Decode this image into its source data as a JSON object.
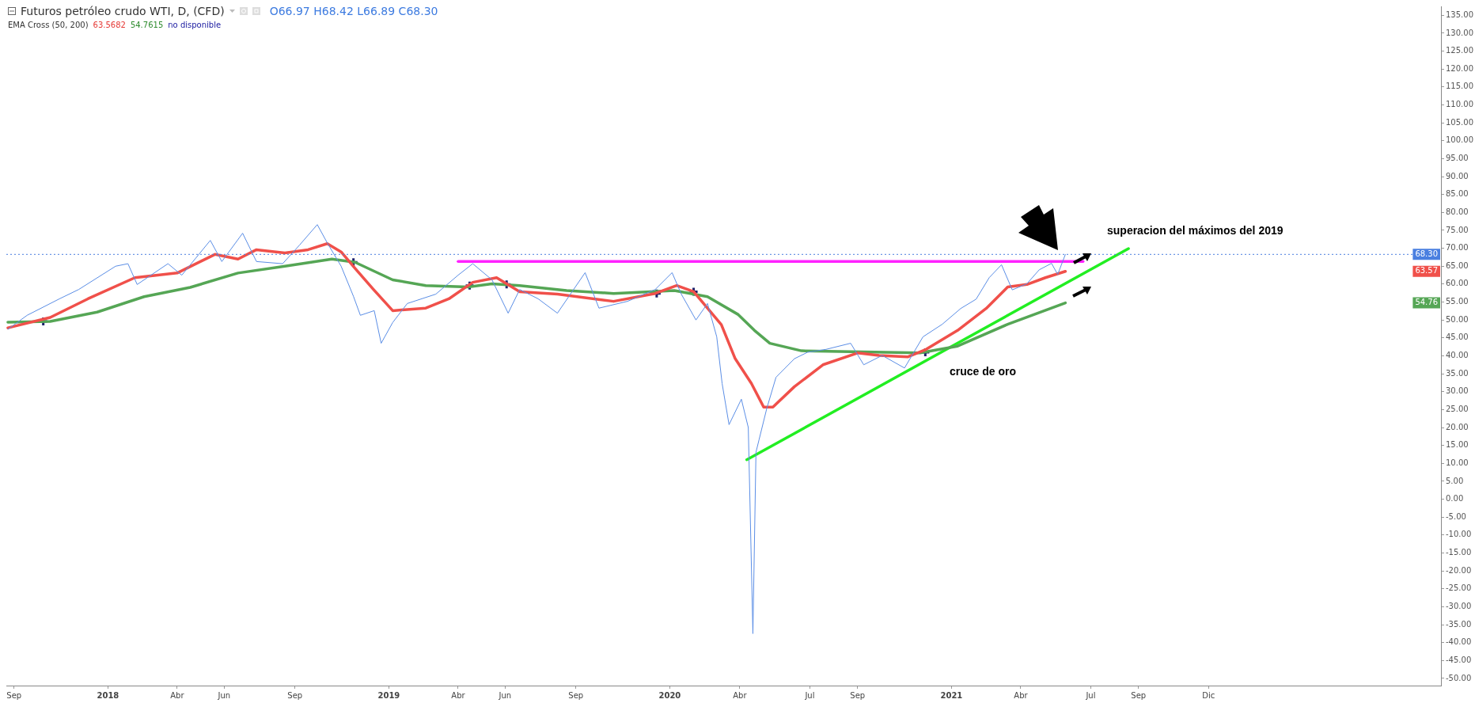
{
  "chart_data": {
    "type": "line",
    "title": "Futuros petróleo crudo WTI, D, (CFD)",
    "subtitle": "O66.97 H68.42 L66.89 C68.30",
    "annotations": [
      "EMA Cross (50, 200)",
      "63.5682",
      "54.7615",
      "no disponible",
      "superacion del máximos del 2019",
      "cruce de oro",
      "63.57",
      "54.76"
    ],
    "xlim": [
      "2017-08-22",
      "2022-09-29"
    ],
    "xticks": [
      {
        "value": "2017-09-01",
        "label": "Sep"
      },
      {
        "value": "2018-01-01",
        "label": "2018"
      },
      {
        "value": "2018-04-01",
        "label": "Abr"
      },
      {
        "value": "2018-06-01",
        "label": "Jun"
      },
      {
        "value": "2018-09-01",
        "label": "Sep"
      },
      {
        "value": "2019-01-01",
        "label": "2019"
      },
      {
        "value": "2019-04-01",
        "label": "Abr"
      },
      {
        "value": "2019-06-01",
        "label": "Jun"
      },
      {
        "value": "2019-09-01",
        "label": "Sep"
      },
      {
        "value": "2020-01-01",
        "label": "2020"
      },
      {
        "value": "2020-04-01",
        "label": "Abr"
      },
      {
        "value": "2020-07-01",
        "label": "Jul"
      },
      {
        "value": "2020-09-01",
        "label": "Sep"
      },
      {
        "value": "2021-01-01",
        "label": "2021"
      },
      {
        "value": "2021-04-01",
        "label": "Abr"
      },
      {
        "value": "2021-07-01",
        "label": "Jul"
      },
      {
        "value": "2021-09-01",
        "label": "Sep"
      },
      {
        "value": "2021-12-01",
        "label": "Dic"
      }
    ],
    "ylim": [
      -52,
      137.5
    ],
    "yticks": [
      {
        "value": -50,
        "label": "-50.00"
      },
      {
        "value": -45,
        "label": "-45.00"
      },
      {
        "value": -40,
        "label": "-40.00"
      },
      {
        "value": -35,
        "label": "-35.00"
      },
      {
        "value": -30,
        "label": "-30.00"
      },
      {
        "value": -25,
        "label": "-25.00"
      },
      {
        "value": -20,
        "label": "-20.00"
      },
      {
        "value": -15,
        "label": "-15.00"
      },
      {
        "value": -10,
        "label": "-10.00"
      },
      {
        "value": -5,
        "label": "-5.00"
      },
      {
        "value": 0,
        "label": "0.00"
      },
      {
        "value": 5,
        "label": "5.00"
      },
      {
        "value": 10,
        "label": "10.00"
      },
      {
        "value": 15,
        "label": "15.00"
      },
      {
        "value": 20,
        "label": "20.00"
      },
      {
        "value": 25,
        "label": "25.00"
      },
      {
        "value": 30,
        "label": "30.00"
      },
      {
        "value": 35,
        "label": "35.00"
      },
      {
        "value": 40,
        "label": "40.00"
      },
      {
        "value": 45,
        "label": "45.00"
      },
      {
        "value": 50,
        "label": "50.00"
      },
      {
        "value": 55,
        "label": "55.00"
      },
      {
        "value": 60,
        "label": "60.00"
      },
      {
        "value": 65,
        "label": "65.00"
      },
      {
        "value": 70,
        "label": "70.00"
      },
      {
        "value": 75,
        "label": "75.00"
      },
      {
        "value": 80,
        "label": "80.00"
      },
      {
        "value": 85,
        "label": "85.00"
      },
      {
        "value": 90,
        "label": "90.00"
      },
      {
        "value": 95,
        "label": "95.00"
      },
      {
        "value": 100,
        "label": "100.00"
      },
      {
        "value": 105,
        "label": "105.00"
      },
      {
        "value": 110,
        "label": "110.00"
      },
      {
        "value": 115,
        "label": "115.00"
      },
      {
        "value": 120,
        "label": "120.00"
      },
      {
        "value": 125,
        "label": "125.00"
      },
      {
        "value": 130,
        "label": "130.00"
      },
      {
        "value": 135,
        "label": "135.00"
      }
    ],
    "grid": false,
    "legend": false,
    "line_style": "solid",
    "ref_lines": [
      {
        "axis": "y",
        "value": 68.3,
        "label": "68.30",
        "color": "#4a7fe0",
        "line_style": "dotted"
      }
    ],
    "series": [
      {
        "color": "#5b8ee6",
        "x": [
          "2017-08-24",
          "2017-09-18",
          "2017-10-30",
          "2017-11-24",
          "2018-01-11",
          "2018-01-27",
          "2018-02-08",
          "2018-03-20",
          "2018-04-07",
          "2018-05-14",
          "2018-05-29",
          "2018-06-25",
          "2018-07-13",
          "2018-08-16",
          "2018-09-07",
          "2018-09-30",
          "2018-10-13",
          "2018-10-31",
          "2018-11-16",
          "2018-11-25",
          "2018-12-13",
          "2018-12-22",
          "2019-01-06",
          "2019-01-25",
          "2019-03-03",
          "2019-04-01",
          "2019-04-20",
          "2019-05-15",
          "2019-06-05",
          "2019-06-20",
          "2019-07-14",
          "2019-08-08",
          "2019-09-13",
          "2019-10-01",
          "2019-11-07",
          "2019-12-13",
          "2020-01-04",
          "2020-01-16",
          "2020-02-04",
          "2020-02-19",
          "2020-03-02",
          "2020-03-09",
          "2020-03-18",
          "2020-04-03",
          "2020-04-12",
          "2020-04-18",
          "2020-04-22",
          "2020-04-26",
          "2020-05-06",
          "2020-05-18",
          "2020-06-11",
          "2020-06-28",
          "2020-07-22",
          "2020-08-23",
          "2020-09-09",
          "2020-10-03",
          "2020-11-01",
          "2020-11-25",
          "2020-12-20",
          "2021-01-13",
          "2021-02-02",
          "2021-02-19",
          "2021-03-07",
          "2021-03-21",
          "2021-04-09",
          "2021-04-25",
          "2021-05-11",
          "2021-05-19",
          "2021-05-29"
        ],
        "values": [
          47.4,
          51.3,
          55.9,
          58.5,
          65.0,
          65.7,
          59.9,
          65.7,
          62.5,
          72.2,
          66.3,
          74.2,
          66.3,
          65.7,
          70.9,
          76.6,
          71.5,
          65.0,
          56.6,
          51.3,
          52.6,
          43.5,
          49.3,
          54.6,
          57.2,
          62.5,
          65.7,
          61.2,
          51.9,
          58.5,
          55.9,
          51.9,
          63.2,
          53.3,
          55.2,
          58.5,
          63.2,
          57.2,
          50.0,
          54.6,
          45.3,
          32.3,
          20.8,
          27.9,
          20.0,
          -37.5,
          13.1,
          16.6,
          25.3,
          34.0,
          39.2,
          41.0,
          41.8,
          43.5,
          37.5,
          40.1,
          36.6,
          45.3,
          48.8,
          53.2,
          55.8,
          61.8,
          65.4,
          58.4,
          60.1,
          64.0,
          65.8,
          62.7,
          68.3
        ]
      },
      {
        "color": "#f0504a",
        "x": [
          "2017-08-24",
          "2017-10-18",
          "2017-12-06",
          "2018-02-05",
          "2018-04-01",
          "2018-05-20",
          "2018-06-19",
          "2018-07-13",
          "2018-08-19",
          "2018-09-18",
          "2018-10-13",
          "2018-10-31",
          "2018-11-18",
          "2018-12-12",
          "2019-01-06",
          "2019-02-18",
          "2019-03-20",
          "2019-04-20",
          "2019-05-21",
          "2019-06-20",
          "2019-08-08",
          "2019-10-20",
          "2019-12-13",
          "2020-01-10",
          "2020-02-01",
          "2020-03-08",
          "2020-03-26",
          "2020-04-16",
          "2020-05-02",
          "2020-05-14",
          "2020-06-11",
          "2020-07-18",
          "2020-09-01",
          "2020-09-29",
          "2020-11-05",
          "2020-11-29",
          "2021-01-09",
          "2021-02-15",
          "2021-03-15",
          "2021-04-09",
          "2021-05-03",
          "2021-05-29"
        ],
        "values": [
          47.8,
          50.7,
          55.9,
          61.8,
          63.1,
          68.3,
          67.0,
          69.6,
          68.7,
          69.6,
          71.3,
          69.0,
          64.4,
          58.5,
          52.6,
          53.3,
          55.9,
          60.5,
          61.8,
          57.9,
          57.2,
          55.2,
          57.4,
          59.6,
          57.9,
          48.7,
          39.2,
          32.3,
          25.7,
          25.7,
          31.4,
          37.5,
          40.8,
          40.1,
          39.7,
          41.8,
          47.1,
          53.2,
          59.2,
          59.9,
          61.8,
          63.57
        ]
      },
      {
        "color": "#55a655",
        "x": [
          "2017-08-24",
          "2017-10-18",
          "2017-12-18",
          "2018-02-17",
          "2018-04-18",
          "2018-06-19",
          "2018-08-19",
          "2018-10-19",
          "2018-11-18",
          "2019-01-06",
          "2019-02-18",
          "2019-04-14",
          "2019-05-15",
          "2019-06-20",
          "2019-08-20",
          "2019-10-20",
          "2020-01-07",
          "2020-02-19",
          "2020-03-30",
          "2020-04-20",
          "2020-05-10",
          "2020-06-20",
          "2020-09-09",
          "2020-11-21",
          "2021-01-09",
          "2021-03-15",
          "2021-05-29"
        ],
        "values": [
          49.4,
          49.6,
          52.2,
          56.5,
          59.1,
          63.1,
          65.0,
          67.0,
          66.1,
          61.2,
          59.6,
          59.2,
          60.1,
          59.6,
          58.2,
          57.4,
          58.2,
          56.5,
          51.5,
          47.1,
          43.5,
          41.4,
          41.1,
          40.8,
          42.7,
          48.8,
          54.76
        ]
      },
      {
        "type": "scatter",
        "marker": "cross",
        "color": "#1c2069",
        "x": [
          "2017-10-09",
          "2018-11-16",
          "2019-04-16",
          "2019-06-03",
          "2019-12-15",
          "2020-02-01",
          "2020-11-28"
        ],
        "values": [
          49.6,
          66.1,
          59.6,
          59.9,
          57.4,
          57.9,
          41.0
        ]
      },
      {
        "color": "#22ee22",
        "x": [
          "2020-04-10",
          "2021-08-19"
        ],
        "values": [
          11.0,
          69.9
        ]
      },
      {
        "color": "#ff22ff",
        "x": [
          "2019-04-01",
          "2021-06-21"
        ],
        "values": [
          66.3,
          66.3
        ]
      }
    ]
  }
}
